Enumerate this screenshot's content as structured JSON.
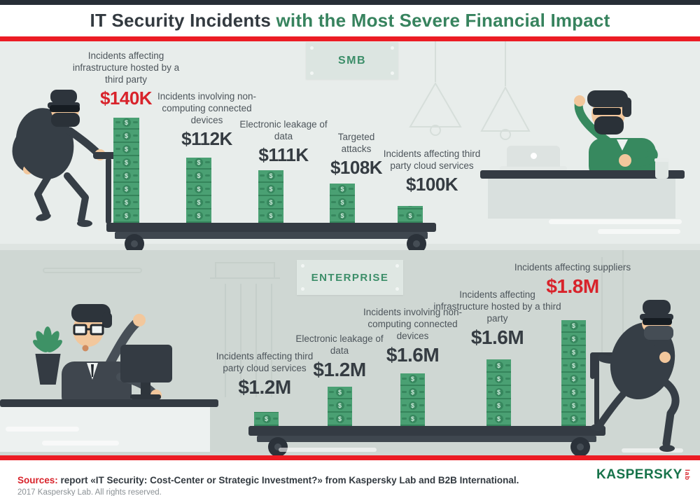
{
  "colors": {
    "red": "#d8232b",
    "line_red": "#ec1c24",
    "green": "#37835e",
    "money": "#4aa073",
    "dark": "#343b43",
    "label": "#4d555b"
  },
  "header": {
    "title_dark": "IT Security Incidents",
    "title_green": "with the Most Severe Financial Impact"
  },
  "money": {
    "symbol": "$"
  },
  "smb": {
    "section_label": "SMB",
    "bars": [
      {
        "label": "Incidents affecting infrastructure hosted by a third party",
        "value": "$140K",
        "highlight": true
      },
      {
        "label": "Incidents involving non-computing connected devices",
        "value": "$112K",
        "highlight": false
      },
      {
        "label": "Electronic leakage of data",
        "value": "$111K",
        "highlight": false
      },
      {
        "label": "Targeted attacks",
        "value": "$108K",
        "highlight": false
      },
      {
        "label": "Incidents affecting third party cloud services",
        "value": "$100K",
        "highlight": false
      }
    ]
  },
  "enterprise": {
    "section_label": "ENTERPRISE",
    "bars": [
      {
        "label": "Incidents affecting third party cloud services",
        "value": "$1.2M",
        "highlight": false
      },
      {
        "label": "Electronic leakage of data",
        "value": "$1.2M",
        "highlight": false
      },
      {
        "label": "Incidents involving non-computing connected devices",
        "value": "$1.6M",
        "highlight": false
      },
      {
        "label": "Incidents affecting infrastructure hosted by a third party",
        "value": "$1.6M",
        "highlight": false
      },
      {
        "label": "Incidents affecting suppliers",
        "value": "$1.8M",
        "highlight": true
      }
    ]
  },
  "footer": {
    "sources_label": "Sources:",
    "sources_text": " report «IT Security: Cost-Center or Strategic Investment?» from Kaspersky Lab and B2B International.",
    "copyright": "2017 Kaspersky Lab. All rights reserved.",
    "logo_word": "KASPERSKY",
    "logo_lab": "lab"
  },
  "chart_data": [
    {
      "type": "bar",
      "title": "SMB",
      "categories": [
        "Incidents affecting infrastructure hosted by a third party",
        "Incidents involving non-computing connected devices",
        "Electronic leakage of data",
        "Targeted attacks",
        "Incidents affecting third party cloud services"
      ],
      "values": [
        140000,
        112000,
        111000,
        108000,
        100000
      ],
      "value_labels": [
        "$140K",
        "$112K",
        "$111K",
        "$108K",
        "$100K"
      ],
      "unit": "USD",
      "highlight_index": 0,
      "grid": false,
      "legend_position": "none"
    },
    {
      "type": "bar",
      "title": "ENTERPRISE",
      "categories": [
        "Incidents affecting third party cloud services",
        "Electronic leakage of data",
        "Incidents involving non-computing connected devices",
        "Incidents affecting infrastructure hosted by a third party",
        "Incidents affecting suppliers"
      ],
      "values": [
        1200000,
        1200000,
        1600000,
        1600000,
        1800000
      ],
      "value_labels": [
        "$1.2M",
        "$1.2M",
        "$1.6M",
        "$1.6M",
        "$1.8M"
      ],
      "unit": "USD",
      "highlight_index": 4,
      "grid": false,
      "legend_position": "none"
    }
  ]
}
